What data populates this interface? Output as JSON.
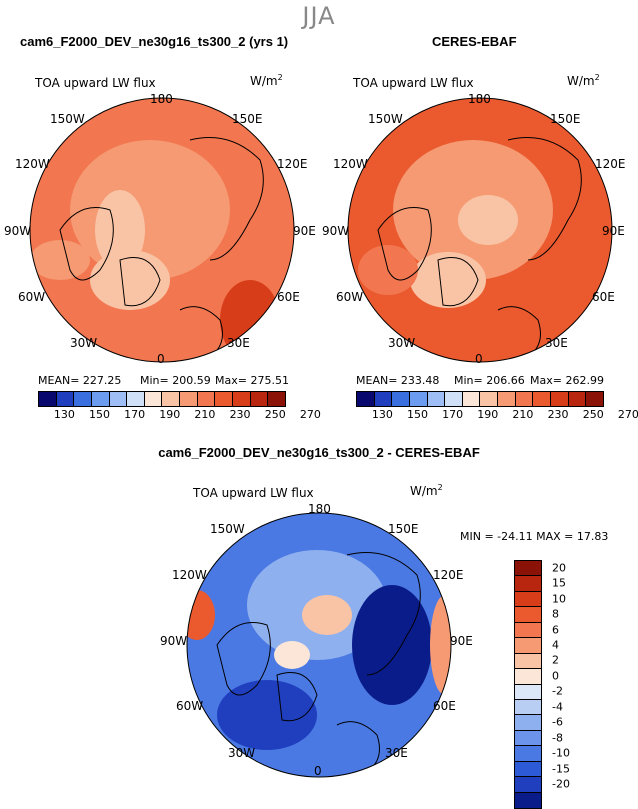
{
  "season": "JJA",
  "left_panel": {
    "title": "cam6_F2000_DEV_ne30g16_ts300_2 (yrs 1)",
    "variable": "TOA upward LW flux",
    "units": "W/m",
    "units_exp": "2",
    "stats": {
      "mean": "MEAN= 227.25",
      "min": "Min= 200.59",
      "max": "Max= 275.51"
    }
  },
  "right_panel": {
    "title": "CERES-EBAF",
    "variable": "TOA upward LW flux",
    "units": "W/m",
    "units_exp": "2",
    "stats": {
      "mean": "MEAN= 233.48",
      "min": "Min= 206.66",
      "max": "Max= 262.99"
    }
  },
  "diff_panel": {
    "title": "cam6_F2000_DEV_ne30g16_ts300_2 - CERES-EBAF",
    "variable": "TOA upward LW flux",
    "units": "W/m",
    "units_exp": "2",
    "stats": "MIN = -24.11  MAX =  17.83"
  },
  "lon_labels": {
    "top": "180",
    "bottom": "0",
    "l1": "150W",
    "l2": "120W",
    "l3": "90W",
    "l4": "60W",
    "l5": "30W",
    "r1": "150E",
    "r2": "120E",
    "r3": "90E",
    "r4": "60E",
    "r5": "30E"
  },
  "abs_colorbar": {
    "colors": [
      "#08086e",
      "#1f3fbf",
      "#3a6fe0",
      "#6b9cf0",
      "#9ebef5",
      "#cfe0f7",
      "#fbe6d8",
      "#f9c4a6",
      "#f59a73",
      "#f2764f",
      "#ea5a2e",
      "#d83d1a",
      "#b8260f",
      "#8a1206"
    ],
    "ticks": [
      "130",
      "150",
      "170",
      "190",
      "210",
      "230",
      "250",
      "270"
    ]
  },
  "diff_colorbar": {
    "colors": [
      "#8a1206",
      "#b8260f",
      "#d83d1a",
      "#ea5a2e",
      "#f2764f",
      "#f59a73",
      "#f9c4a6",
      "#fbe6d8",
      "#dce8f8",
      "#b8cff3",
      "#8fb0ef",
      "#6b94ea",
      "#4b79e4",
      "#2d5bd8",
      "#1f3fbf",
      "#0a1c8a"
    ],
    "ticks": [
      "20",
      "15",
      "10",
      "8",
      "6",
      "4",
      "2",
      "0",
      "-2",
      "-4",
      "-6",
      "-8",
      "-10",
      "-15",
      "-20"
    ]
  },
  "map_colors": {
    "abs_base": "#f59a73",
    "abs_high": "#ea5a2e",
    "abs_low": "#fbe6d8",
    "diff_base": "#4b79e4",
    "diff_low": "#0a1c8a",
    "diff_warm": "#ea5a2e"
  }
}
